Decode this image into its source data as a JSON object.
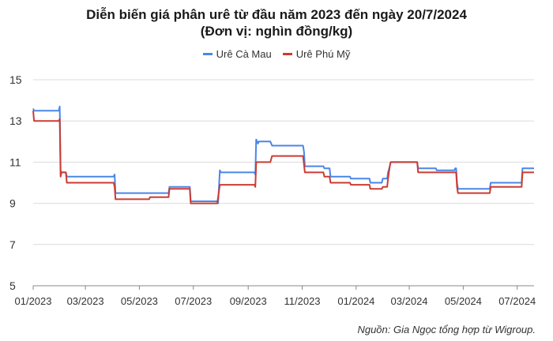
{
  "chart_data": {
    "type": "line",
    "title": "Diễn biến giá phân urê từ đầu năm 2023 đến ngày 20/7/2024",
    "subtitle": "(Đơn vị: nghìn đồng/kg)",
    "source": "Nguồn: Gia Ngọc tổng hợp từ Wigroup.",
    "ylim": [
      5,
      15
    ],
    "yticks": [
      5,
      7,
      9,
      11,
      13,
      15
    ],
    "grid": true,
    "legend_position": "top-center",
    "xticks": [
      "2023-01-01",
      "2023-03-01",
      "2023-05-01",
      "2023-07-01",
      "2023-09-01",
      "2023-11-01",
      "2024-01-01",
      "2024-03-01",
      "2024-05-01",
      "2024-07-01"
    ],
    "xtick_labels": [
      "01/2023",
      "03/2023",
      "05/2023",
      "07/2023",
      "09/2023",
      "11/2023",
      "01/2024",
      "03/2024",
      "05/2024",
      "07/2024"
    ],
    "xlim": [
      "2023-01-01",
      "2024-07-20"
    ],
    "series": [
      {
        "name": "Urê Cà Mau",
        "color": "#4a86e8",
        "points": [
          [
            "2023-01-01",
            13.6
          ],
          [
            "2023-01-02",
            13.5
          ],
          [
            "2023-01-30",
            13.5
          ],
          [
            "2023-01-31",
            13.7
          ],
          [
            "2023-02-01",
            10.6
          ],
          [
            "2023-02-02",
            10.5
          ],
          [
            "2023-02-07",
            10.5
          ],
          [
            "2023-02-08",
            10.3
          ],
          [
            "2023-04-02",
            10.3
          ],
          [
            "2023-04-03",
            10.4
          ],
          [
            "2023-04-04",
            9.5
          ],
          [
            "2023-06-03",
            9.5
          ],
          [
            "2023-06-04",
            9.8
          ],
          [
            "2023-06-27",
            9.8
          ],
          [
            "2023-06-28",
            9.1
          ],
          [
            "2023-07-28",
            9.1
          ],
          [
            "2023-07-29",
            9.0
          ],
          [
            "2023-07-31",
            10.6
          ],
          [
            "2023-08-01",
            10.5
          ],
          [
            "2023-09-08",
            10.5
          ],
          [
            "2023-09-09",
            10.4
          ],
          [
            "2023-09-10",
            12.1
          ],
          [
            "2023-09-12",
            11.9
          ],
          [
            "2023-09-13",
            12.0
          ],
          [
            "2023-09-26",
            12.0
          ],
          [
            "2023-09-28",
            11.8
          ],
          [
            "2023-11-02",
            11.8
          ],
          [
            "2023-11-03",
            11.5
          ],
          [
            "2023-11-04",
            10.8
          ],
          [
            "2023-11-25",
            10.8
          ],
          [
            "2023-11-26",
            10.7
          ],
          [
            "2023-12-02",
            10.7
          ],
          [
            "2023-12-03",
            10.3
          ],
          [
            "2023-12-25",
            10.3
          ],
          [
            "2023-12-26",
            10.2
          ],
          [
            "2024-01-16",
            10.2
          ],
          [
            "2024-01-17",
            10.0
          ],
          [
            "2024-01-30",
            10.0
          ],
          [
            "2024-01-31",
            10.2
          ],
          [
            "2024-02-05",
            10.2
          ],
          [
            "2024-02-06",
            10.5
          ],
          [
            "2024-02-08",
            10.8
          ],
          [
            "2024-02-09",
            11.0
          ],
          [
            "2024-03-10",
            11.0
          ],
          [
            "2024-03-11",
            10.7
          ],
          [
            "2024-03-31",
            10.7
          ],
          [
            "2024-04-01",
            10.6
          ],
          [
            "2024-04-21",
            10.6
          ],
          [
            "2024-04-22",
            10.7
          ],
          [
            "2024-04-23",
            10.7
          ],
          [
            "2024-04-24",
            10.0
          ],
          [
            "2024-04-25",
            9.7
          ],
          [
            "2024-05-31",
            9.7
          ],
          [
            "2024-06-01",
            10.0
          ],
          [
            "2024-07-06",
            10.0
          ],
          [
            "2024-07-07",
            10.7
          ],
          [
            "2024-07-20",
            10.7
          ]
        ]
      },
      {
        "name": "Urê Phú Mỹ",
        "color": "#cc3b33",
        "points": [
          [
            "2023-01-01",
            13.5
          ],
          [
            "2023-01-02",
            13.0
          ],
          [
            "2023-01-30",
            13.0
          ],
          [
            "2023-01-31",
            13.1
          ],
          [
            "2023-02-01",
            10.3
          ],
          [
            "2023-02-02",
            10.5
          ],
          [
            "2023-02-07",
            10.5
          ],
          [
            "2023-02-08",
            10.0
          ],
          [
            "2023-04-02",
            10.0
          ],
          [
            "2023-04-03",
            9.8
          ],
          [
            "2023-04-04",
            9.2
          ],
          [
            "2023-05-12",
            9.2
          ],
          [
            "2023-05-13",
            9.3
          ],
          [
            "2023-06-03",
            9.3
          ],
          [
            "2023-06-04",
            9.7
          ],
          [
            "2023-06-27",
            9.7
          ],
          [
            "2023-06-28",
            9.0
          ],
          [
            "2023-07-28",
            9.0
          ],
          [
            "2023-07-31",
            9.9
          ],
          [
            "2023-09-08",
            9.9
          ],
          [
            "2023-09-09",
            9.8
          ],
          [
            "2023-09-10",
            11.0
          ],
          [
            "2023-09-26",
            11.0
          ],
          [
            "2023-09-28",
            11.3
          ],
          [
            "2023-11-02",
            11.3
          ],
          [
            "2023-11-03",
            10.9
          ],
          [
            "2023-11-04",
            10.5
          ],
          [
            "2023-11-25",
            10.5
          ],
          [
            "2023-11-26",
            10.3
          ],
          [
            "2023-12-02",
            10.3
          ],
          [
            "2023-12-03",
            10.0
          ],
          [
            "2023-12-25",
            10.0
          ],
          [
            "2023-12-26",
            9.9
          ],
          [
            "2024-01-16",
            9.9
          ],
          [
            "2024-01-17",
            9.7
          ],
          [
            "2024-01-30",
            9.7
          ],
          [
            "2024-01-31",
            9.8
          ],
          [
            "2024-02-05",
            9.8
          ],
          [
            "2024-02-06",
            10.2
          ],
          [
            "2024-02-08",
            10.8
          ],
          [
            "2024-02-09",
            11.0
          ],
          [
            "2024-03-10",
            11.0
          ],
          [
            "2024-03-11",
            10.5
          ],
          [
            "2024-04-23",
            10.5
          ],
          [
            "2024-04-24",
            9.8
          ],
          [
            "2024-04-25",
            9.5
          ],
          [
            "2024-05-31",
            9.5
          ],
          [
            "2024-06-01",
            9.8
          ],
          [
            "2024-07-06",
            9.8
          ],
          [
            "2024-07-07",
            10.5
          ],
          [
            "2024-07-20",
            10.5
          ]
        ]
      }
    ]
  }
}
